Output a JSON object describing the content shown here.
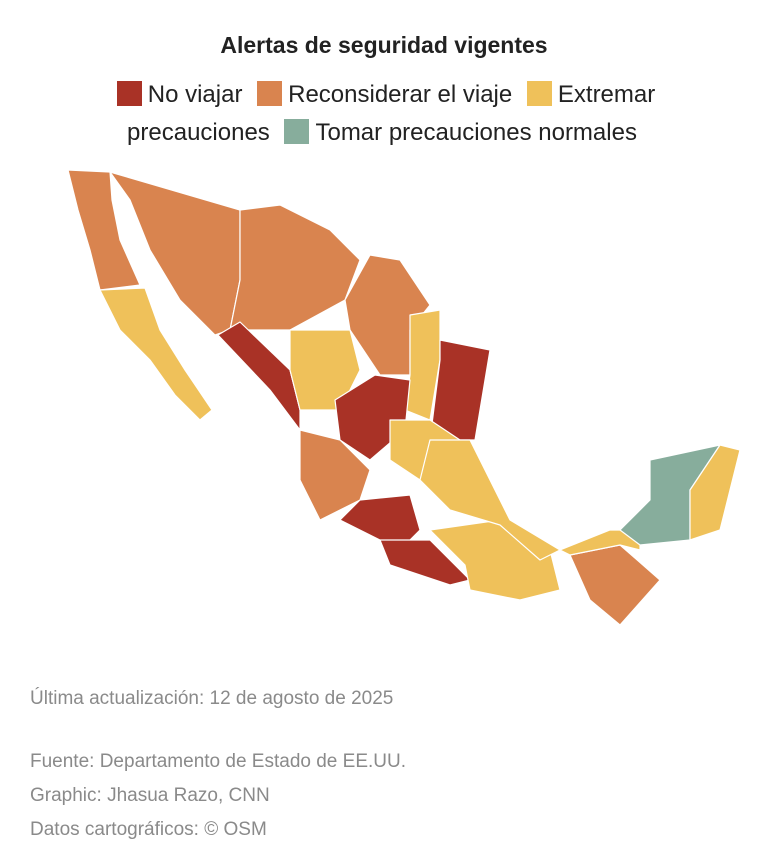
{
  "header": {
    "title": "Alertas de seguridad vigentes"
  },
  "legend": [
    {
      "label": "No viajar",
      "color": "#a93226"
    },
    {
      "label": "Reconsiderar el viaje",
      "color": "#d9844f"
    },
    {
      "label": "Extremar precauciones",
      "color": "#efc15a"
    },
    {
      "label": "Tomar precauciones normales",
      "color": "#87ad9c"
    }
  ],
  "footer": {
    "updated": "Última actualización: 12 de agosto de 2025",
    "source": "Fuente: Departamento de Estado de EE.UU.",
    "graphic": "Graphic: Jhasua Razo, CNN",
    "map_data": "Datos cartográficos: © OSM"
  }
}
